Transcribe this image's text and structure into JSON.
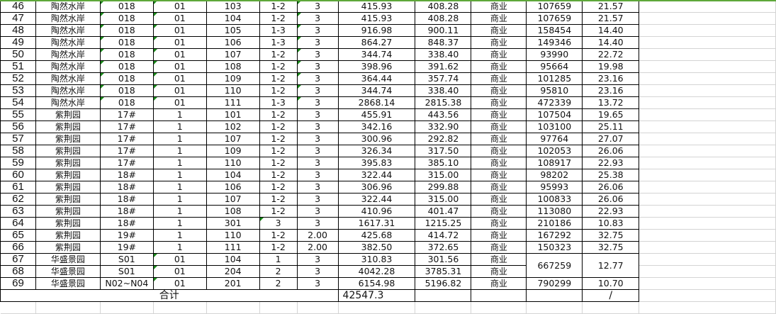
{
  "colors": {
    "selection_border": "#5ea83a",
    "text_number_flag": "#1a8a1a"
  },
  "rows": [
    {
      "no": "46",
      "name": "陶然水岸",
      "bldg": "018",
      "unit": "01",
      "room": "103",
      "floor": "1-2",
      "c7": "3",
      "area1": "415.93",
      "area2": "408.28",
      "use": "商业",
      "price": "107659",
      "val": "21.57"
    },
    {
      "no": "47",
      "name": "陶然水岸",
      "bldg": "018",
      "unit": "01",
      "room": "104",
      "floor": "1-2",
      "c7": "3",
      "area1": "415.93",
      "area2": "408.28",
      "use": "商业",
      "price": "107659",
      "val": "21.57"
    },
    {
      "no": "48",
      "name": "陶然水岸",
      "bldg": "018",
      "unit": "01",
      "room": "105",
      "floor": "1-3",
      "c7": "3",
      "area1": "916.98",
      "area2": "900.11",
      "use": "商业",
      "price": "158454",
      "val": "14.40"
    },
    {
      "no": "49",
      "name": "陶然水岸",
      "bldg": "018",
      "unit": "01",
      "room": "106",
      "floor": "1-3",
      "c7": "3",
      "area1": "864.27",
      "area2": "848.37",
      "use": "商业",
      "price": "149346",
      "val": "14.40"
    },
    {
      "no": "50",
      "name": "陶然水岸",
      "bldg": "018",
      "unit": "01",
      "room": "107",
      "floor": "1-2",
      "c7": "3",
      "area1": "344.74",
      "area2": "338.40",
      "use": "商业",
      "price": "93990",
      "val": "22.72"
    },
    {
      "no": "51",
      "name": "陶然水岸",
      "bldg": "018",
      "unit": "01",
      "room": "108",
      "floor": "1-2",
      "c7": "3",
      "area1": "398.96",
      "area2": "391.62",
      "use": "商业",
      "price": "95664",
      "val": "19.98"
    },
    {
      "no": "52",
      "name": "陶然水岸",
      "bldg": "018",
      "unit": "01",
      "room": "109",
      "floor": "1-2",
      "c7": "3",
      "area1": "364.44",
      "area2": "357.74",
      "use": "商业",
      "price": "101285",
      "val": "23.16"
    },
    {
      "no": "53",
      "name": "陶然水岸",
      "bldg": "018",
      "unit": "01",
      "room": "110",
      "floor": "1-2",
      "c7": "3",
      "area1": "344.74",
      "area2": "338.40",
      "use": "商业",
      "price": "95810",
      "val": "23.16"
    },
    {
      "no": "54",
      "name": "陶然水岸",
      "bldg": "018",
      "unit": "01",
      "room": "111",
      "floor": "1-3",
      "c7": "3",
      "area1": "2868.14",
      "area2": "2815.38",
      "use": "商业",
      "price": "472339",
      "val": "13.72"
    },
    {
      "no": "55",
      "name": "紫荆园",
      "bldg": "17#",
      "unit": "1",
      "room": "101",
      "floor": "1-2",
      "c7": "3",
      "area1": "455.91",
      "area2": "443.56",
      "use": "商业",
      "price": "107504",
      "val": "19.65"
    },
    {
      "no": "56",
      "name": "紫荆园",
      "bldg": "17#",
      "unit": "1",
      "room": "102",
      "floor": "1-2",
      "c7": "3",
      "area1": "342.16",
      "area2": "332.90",
      "use": "商业",
      "price": "103100",
      "val": "25.11"
    },
    {
      "no": "57",
      "name": "紫荆园",
      "bldg": "17#",
      "unit": "1",
      "room": "107",
      "floor": "1-2",
      "c7": "3",
      "area1": "300.96",
      "area2": "292.82",
      "use": "商业",
      "price": "97764",
      "val": "27.07"
    },
    {
      "no": "58",
      "name": "紫荆园",
      "bldg": "17#",
      "unit": "1",
      "room": "109",
      "floor": "1-2",
      "c7": "3",
      "area1": "326.34",
      "area2": "317.50",
      "use": "商业",
      "price": "102053",
      "val": "26.06"
    },
    {
      "no": "59",
      "name": "紫荆园",
      "bldg": "17#",
      "unit": "1",
      "room": "110",
      "floor": "1-2",
      "c7": "3",
      "area1": "395.83",
      "area2": "385.10",
      "use": "商业",
      "price": "108917",
      "val": "22.93"
    },
    {
      "no": "60",
      "name": "紫荆园",
      "bldg": "18#",
      "unit": "1",
      "room": "104",
      "floor": "1-2",
      "c7": "3",
      "area1": "322.44",
      "area2": "315.00",
      "use": "商业",
      "price": "98202",
      "val": "25.38"
    },
    {
      "no": "61",
      "name": "紫荆园",
      "bldg": "18#",
      "unit": "1",
      "room": "106",
      "floor": "1-2",
      "c7": "3",
      "area1": "306.96",
      "area2": "299.88",
      "use": "商业",
      "price": "95993",
      "val": "26.06"
    },
    {
      "no": "62",
      "name": "紫荆园",
      "bldg": "18#",
      "unit": "1",
      "room": "107",
      "floor": "1-2",
      "c7": "3",
      "area1": "322.44",
      "area2": "315.00",
      "use": "商业",
      "price": "100833",
      "val": "26.06"
    },
    {
      "no": "63",
      "name": "紫荆园",
      "bldg": "18#",
      "unit": "1",
      "room": "108",
      "floor": "1-2",
      "c7": "3",
      "area1": "410.96",
      "area2": "401.47",
      "use": "商业",
      "price": "113080",
      "val": "22.93"
    },
    {
      "no": "64",
      "name": "紫荆园",
      "bldg": "18#",
      "unit": "1",
      "room": "301",
      "floor": "3",
      "c7": "3",
      "area1": "1617.31",
      "area2": "1215.25",
      "use": "商业",
      "price": "210186",
      "val": "10.83"
    },
    {
      "no": "65",
      "name": "紫荆园",
      "bldg": "19#",
      "unit": "1",
      "room": "110",
      "floor": "1-2",
      "c7": "2.00",
      "area1": "425.68",
      "area2": "414.72",
      "use": "商业",
      "price": "167292",
      "val": "32.75"
    },
    {
      "no": "66",
      "name": "紫荆园",
      "bldg": "19#",
      "unit": "1",
      "room": "111",
      "floor": "1-2",
      "c7": "2.00",
      "area1": "382.50",
      "area2": "372.65",
      "use": "商业",
      "price": "150323",
      "val": "32.75"
    },
    {
      "no": "67",
      "name": "华盛景园",
      "bldg": "S01",
      "unit": "01",
      "room": "104",
      "floor": "1",
      "c7": "3",
      "area1": "310.83",
      "area2": "301.56",
      "use": "商业",
      "price": "667259",
      "val": "12.77"
    },
    {
      "no": "68",
      "name": "华盛景园",
      "bldg": "S01",
      "unit": "01",
      "room": "204",
      "floor": "2",
      "c7": "3",
      "area1": "4042.28",
      "area2": "3785.31",
      "use": "商业"
    },
    {
      "no": "69",
      "name": "华盛景园",
      "bldg": "N02~N04",
      "unit": "01",
      "room": "201",
      "floor": "2",
      "c7": "3",
      "area1": "6154.98",
      "area2": "5196.82",
      "use": "商业",
      "price": "790299",
      "val": "10.70"
    }
  ],
  "total": {
    "label": "合计",
    "area1": "42547.3",
    "val": "/"
  }
}
